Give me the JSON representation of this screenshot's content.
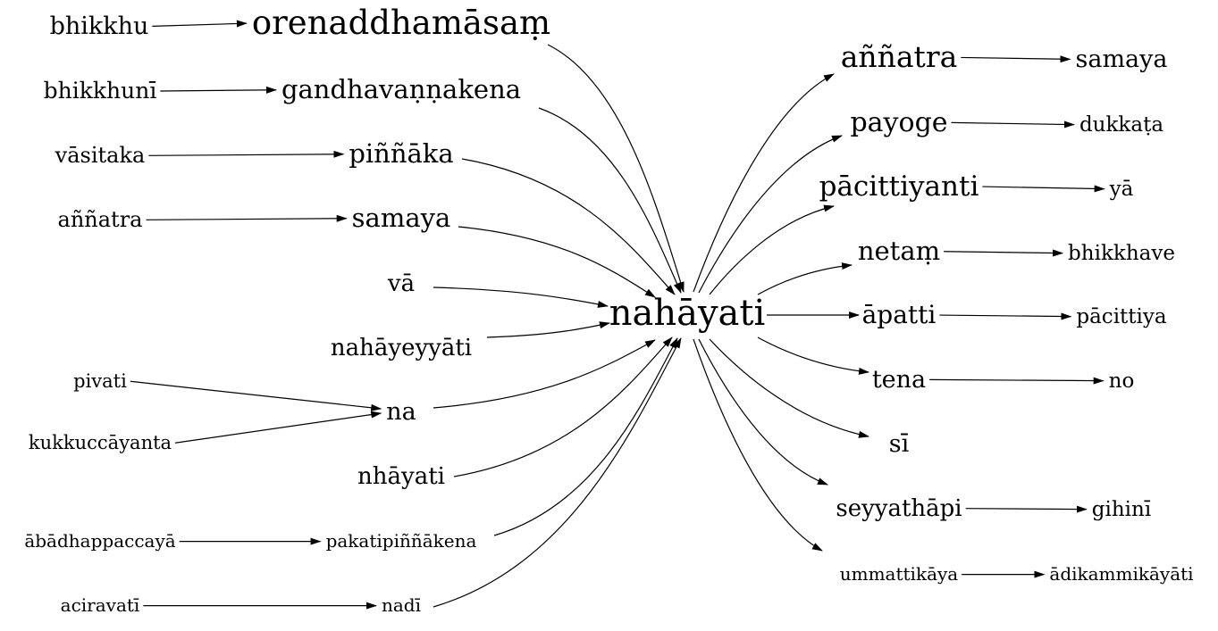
{
  "graph": {
    "center": "nahāyati",
    "nodes": [
      {
        "id": "nahayati",
        "label": "nahāyati"
      },
      {
        "id": "bhikkhu",
        "label": "bhikkhu"
      },
      {
        "id": "orenaddhamasam",
        "label": "orenaddhamāsaṃ"
      },
      {
        "id": "bhikkhuni",
        "label": "bhikkhunī"
      },
      {
        "id": "gandhavannakena",
        "label": "gandhavaṇṇakena"
      },
      {
        "id": "vasitaka",
        "label": "vāsitaka"
      },
      {
        "id": "pinnaka",
        "label": "piññāka"
      },
      {
        "id": "annatra_l",
        "label": "aññatra"
      },
      {
        "id": "samaya_l",
        "label": "samaya"
      },
      {
        "id": "va",
        "label": "vā"
      },
      {
        "id": "nahayeyyati",
        "label": "nahāyeyyāti"
      },
      {
        "id": "pivati",
        "label": "pivati"
      },
      {
        "id": "kukkuccayanta",
        "label": "kukkuccāyanta"
      },
      {
        "id": "na",
        "label": "na"
      },
      {
        "id": "nhayati",
        "label": "nhāyati"
      },
      {
        "id": "abadhappaccaya",
        "label": "ābādhappaccayā"
      },
      {
        "id": "pakatipinnakena",
        "label": "pakatipiññākena"
      },
      {
        "id": "aciravati",
        "label": "aciravatī"
      },
      {
        "id": "nadi",
        "label": "nadī"
      },
      {
        "id": "annatra_r",
        "label": "aññatra"
      },
      {
        "id": "samaya_r",
        "label": "samaya"
      },
      {
        "id": "payoge",
        "label": "payoge"
      },
      {
        "id": "dukkata",
        "label": "dukkaṭa"
      },
      {
        "id": "pacittiyanti",
        "label": "pācittiyanti"
      },
      {
        "id": "ya",
        "label": "yā"
      },
      {
        "id": "netam",
        "label": "netaṃ"
      },
      {
        "id": "bhikkhave",
        "label": "bhikkhave"
      },
      {
        "id": "apatti",
        "label": "āpatti"
      },
      {
        "id": "pacittiya",
        "label": "pācittiya"
      },
      {
        "id": "tena",
        "label": "tena"
      },
      {
        "id": "no",
        "label": "no"
      },
      {
        "id": "si",
        "label": "sī"
      },
      {
        "id": "seyyathapi",
        "label": "seyyathāpi"
      },
      {
        "id": "gihini",
        "label": "gihinī"
      },
      {
        "id": "ummattikaya",
        "label": "ummattikāya"
      },
      {
        "id": "adikammikayati",
        "label": "ādikammikāyāti"
      }
    ],
    "edges": [
      {
        "from": "bhikkhu",
        "to": "orenaddhamasam"
      },
      {
        "from": "bhikkhuni",
        "to": "gandhavannakena"
      },
      {
        "from": "vasitaka",
        "to": "pinnaka"
      },
      {
        "from": "annatra_l",
        "to": "samaya_l"
      },
      {
        "from": "pivati",
        "to": "na"
      },
      {
        "from": "kukkuccayanta",
        "to": "na"
      },
      {
        "from": "abadhappaccaya",
        "to": "pakatipinnakena"
      },
      {
        "from": "aciravati",
        "to": "nadi"
      },
      {
        "from": "orenaddhamasam",
        "to": "nahayati"
      },
      {
        "from": "gandhavannakena",
        "to": "nahayati"
      },
      {
        "from": "pinnaka",
        "to": "nahayati"
      },
      {
        "from": "samaya_l",
        "to": "nahayati"
      },
      {
        "from": "va",
        "to": "nahayati"
      },
      {
        "from": "nahayeyyati",
        "to": "nahayati"
      },
      {
        "from": "na",
        "to": "nahayati"
      },
      {
        "from": "nhayati",
        "to": "nahayati"
      },
      {
        "from": "pakatipinnakena",
        "to": "nahayati"
      },
      {
        "from": "nadi",
        "to": "nahayati"
      },
      {
        "from": "nahayati",
        "to": "annatra_r"
      },
      {
        "from": "nahayati",
        "to": "payoge"
      },
      {
        "from": "nahayati",
        "to": "pacittiyanti"
      },
      {
        "from": "nahayati",
        "to": "netam"
      },
      {
        "from": "nahayati",
        "to": "apatti"
      },
      {
        "from": "nahayati",
        "to": "tena"
      },
      {
        "from": "nahayati",
        "to": "si"
      },
      {
        "from": "nahayati",
        "to": "seyyathapi"
      },
      {
        "from": "nahayati",
        "to": "ummattikaya"
      },
      {
        "from": "annatra_r",
        "to": "samaya_r"
      },
      {
        "from": "payoge",
        "to": "dukkata"
      },
      {
        "from": "pacittiyanti",
        "to": "ya"
      },
      {
        "from": "netam",
        "to": "bhikkhave"
      },
      {
        "from": "apatti",
        "to": "pacittiya"
      },
      {
        "from": "tena",
        "to": "no"
      },
      {
        "from": "seyyathapi",
        "to": "gihini"
      },
      {
        "from": "ummattikaya",
        "to": "adikammikayati"
      }
    ]
  }
}
